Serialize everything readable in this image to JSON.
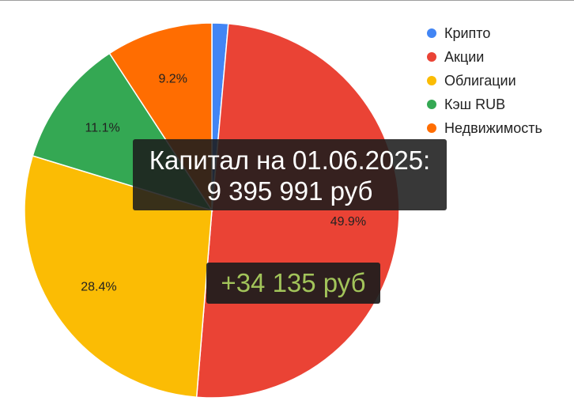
{
  "chart_data": {
    "type": "pie",
    "slices": [
      {
        "name": "Крипто",
        "value": 1.4,
        "label": "",
        "color": "#4285f4"
      },
      {
        "name": "Акции",
        "value": 49.9,
        "label": "49.9%",
        "color": "#ea4335"
      },
      {
        "name": "Облигации",
        "value": 28.4,
        "label": "28.4%",
        "color": "#fbbc04"
      },
      {
        "name": "Кэш RUB",
        "value": 11.1,
        "label": "11.1%",
        "color": "#34a853"
      },
      {
        "name": "Недвижимость",
        "value": 9.2,
        "label": "9.2%",
        "color": "#ff6d01"
      }
    ],
    "legend_position": "top-right",
    "start_angle": "12 o'clock",
    "direction": "clockwise"
  },
  "overlay": {
    "capital_line1": "Капитал на 01.06.2025:",
    "capital_line2": "9 395 991 руб",
    "delta": "+34 135 руб",
    "delta_color": "#a2c45a"
  }
}
